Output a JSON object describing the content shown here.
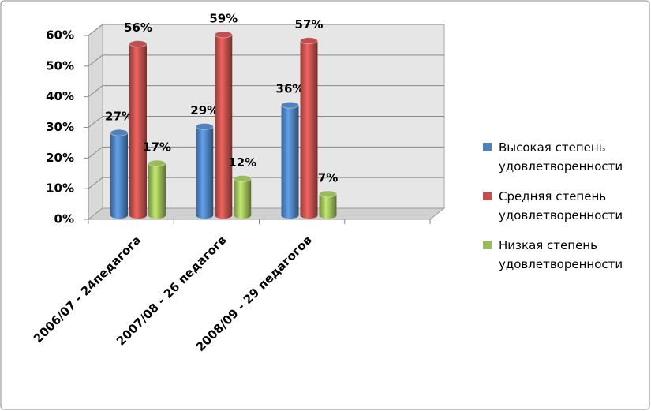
{
  "chart_data": {
    "type": "bar",
    "categories": [
      "2006/07 - 24педагога",
      "2007/08  - 26 педагогв",
      "2008/09  - 29 педагогов",
      null
    ],
    "series": [
      {
        "name": "Высокая степень удовлетворенности",
        "color": "#4f81bd",
        "values": [
          27,
          29,
          36,
          null
        ],
        "value_labels": [
          "27%",
          "29%",
          "36%",
          null
        ]
      },
      {
        "name": "Средняя степень удовлетворенности",
        "color": "#c0504d",
        "values": [
          56,
          59,
          57,
          null
        ],
        "value_labels": [
          "56%",
          "59%",
          "57%",
          null
        ]
      },
      {
        "name": "Низкая степень удовлетворенности",
        "color": "#9bbb59",
        "values": [
          17,
          12,
          7,
          null
        ],
        "value_labels": [
          "17%",
          "12%",
          "7%",
          null
        ]
      }
    ],
    "ylim": [
      0,
      60
    ],
    "yticks": [
      {
        "value": 0,
        "label": "0%"
      },
      {
        "value": 10,
        "label": "10%"
      },
      {
        "value": 20,
        "label": "20%"
      },
      {
        "value": 30,
        "label": "30%"
      },
      {
        "value": 40,
        "label": "40%"
      },
      {
        "value": 50,
        "label": "50%"
      },
      {
        "value": 60,
        "label": "60%"
      }
    ],
    "grid": true,
    "legend": "right"
  }
}
